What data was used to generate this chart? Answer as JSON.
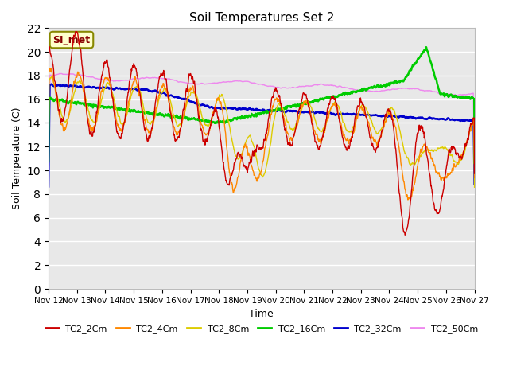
{
  "title": "Soil Temperatures Set 2",
  "xlabel": "Time",
  "ylabel": "Soil Temperature (C)",
  "ylim": [
    0,
    22
  ],
  "yticks": [
    0,
    2,
    4,
    6,
    8,
    10,
    12,
    14,
    16,
    18,
    20,
    22
  ],
  "plot_bg_color": "#e8e8e8",
  "series_colors": {
    "TC2_2Cm": "#cc0000",
    "TC2_4Cm": "#ff8800",
    "TC2_8Cm": "#ddcc00",
    "TC2_16Cm": "#00cc00",
    "TC2_32Cm": "#0000cc",
    "TC2_50Cm": "#ee88ee"
  },
  "annotation_text": "SI_met",
  "annotation_color": "#880000",
  "annotation_bg": "#ffffcc",
  "annotation_border": "#888800",
  "x_tick_labels": [
    "Nov 12",
    "Nov 13",
    "Nov 14",
    "Nov 15",
    "Nov 16",
    "Nov 17",
    "Nov 18",
    "Nov 19",
    "Nov 20",
    "Nov 21",
    "Nov 22",
    "Nov 23",
    "Nov 24",
    "Nov 25",
    "Nov 26",
    "Nov 27"
  ],
  "grid_color": "#ffffff",
  "linewidth_thin": 1.0,
  "linewidth_thick": 1.8
}
